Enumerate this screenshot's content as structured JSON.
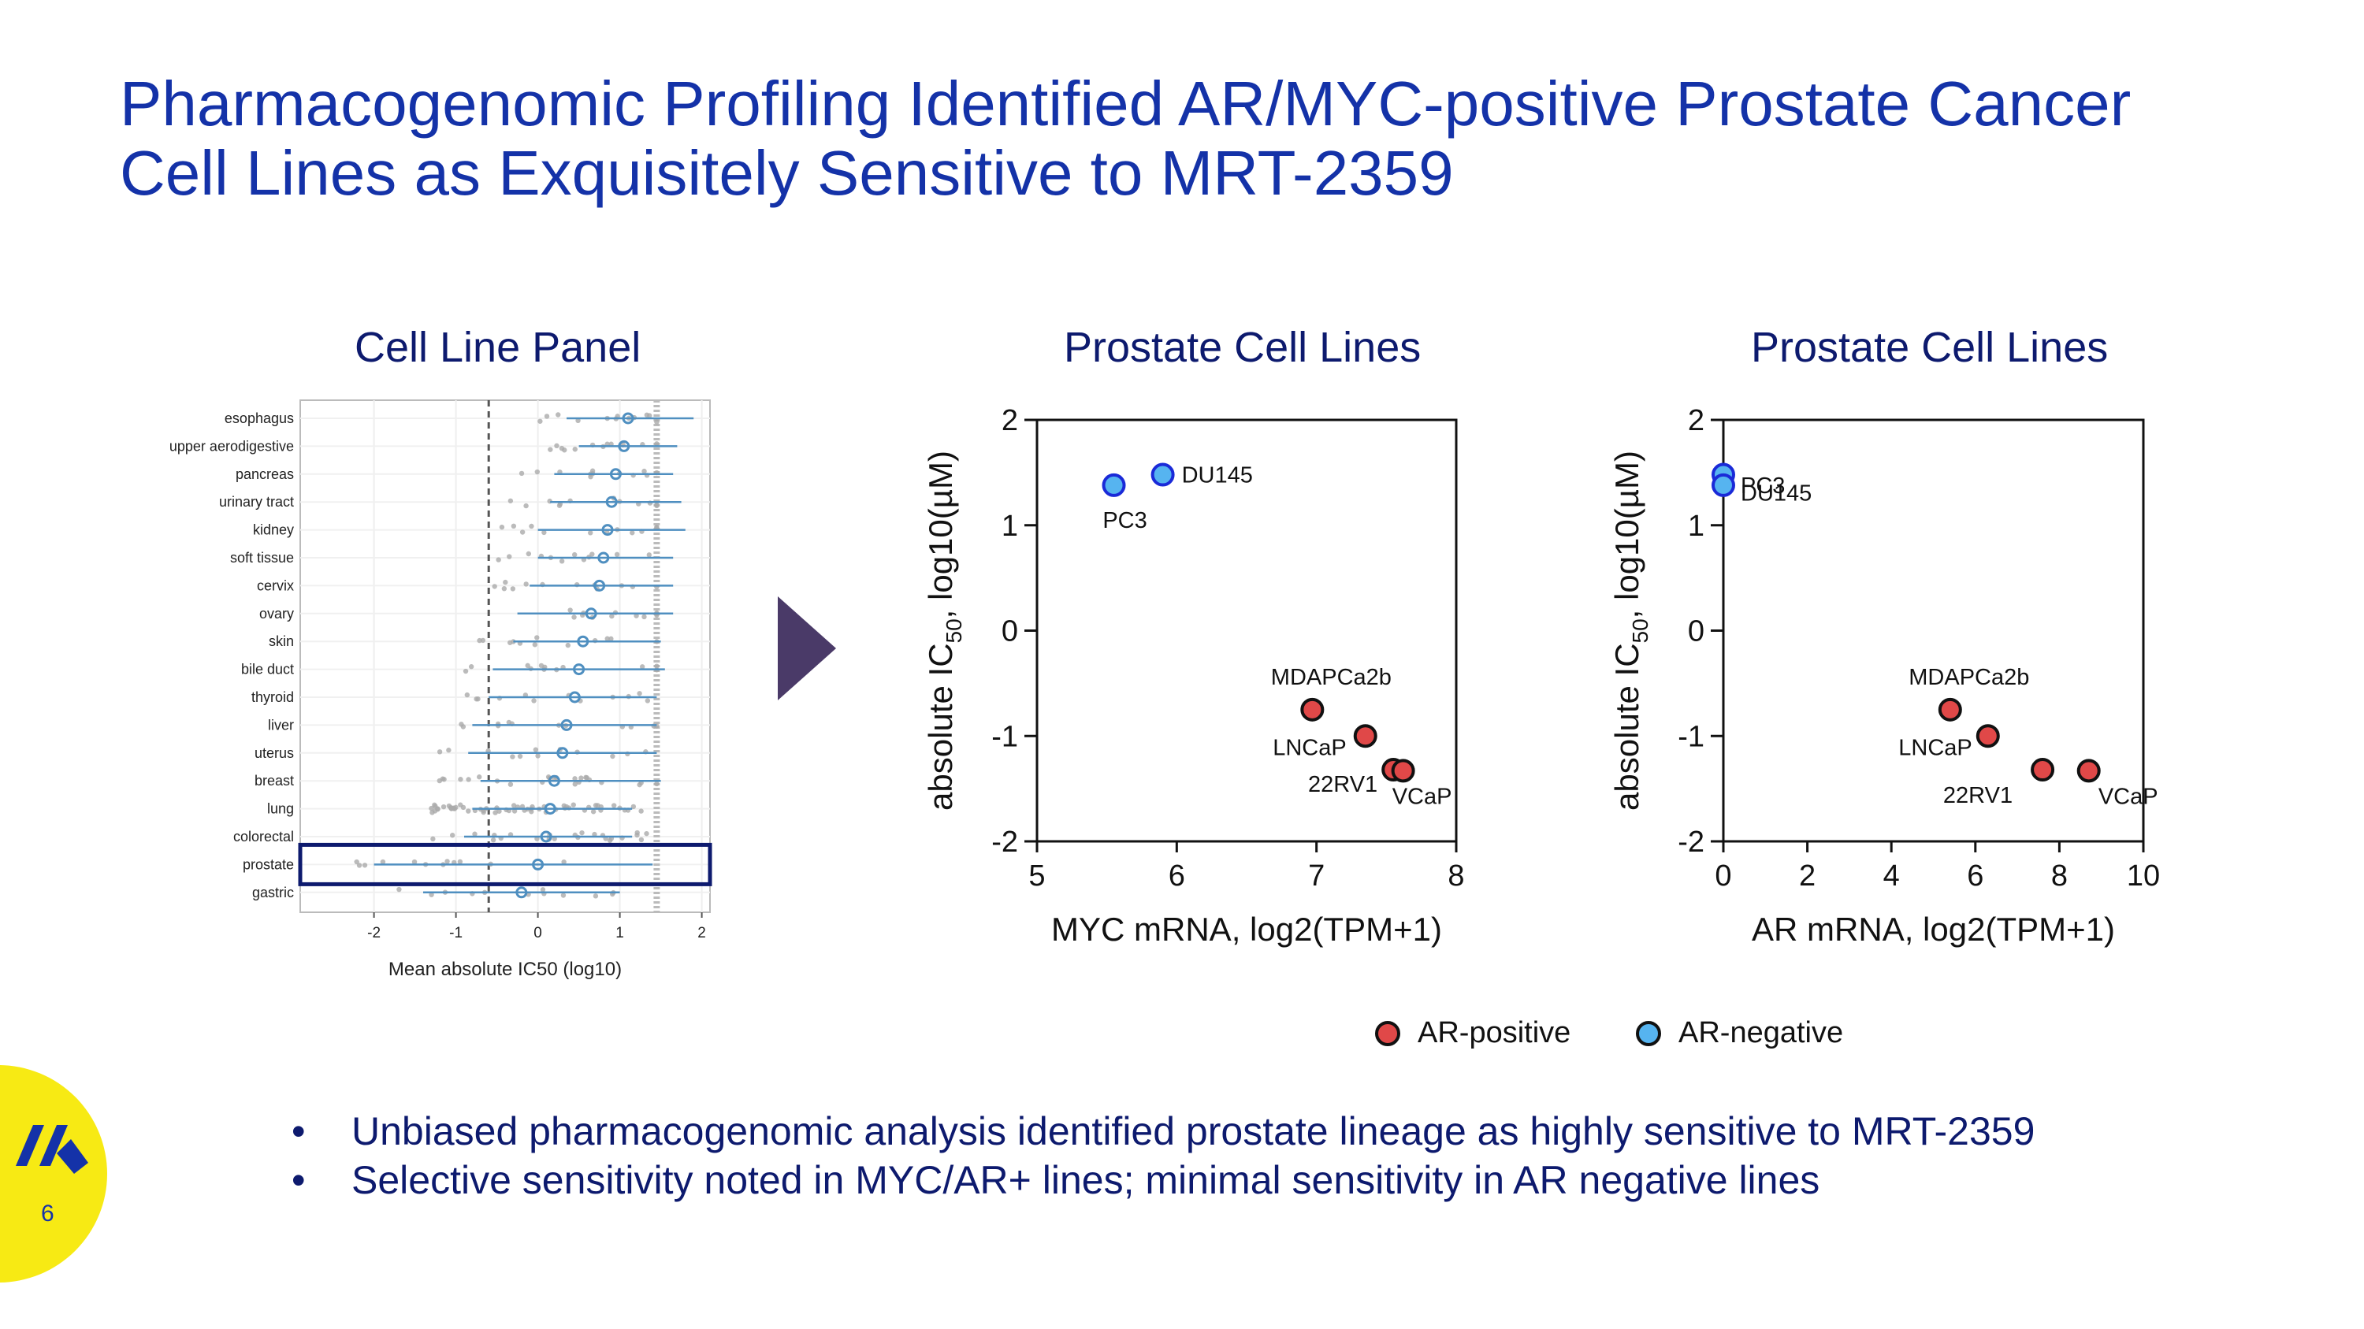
{
  "slide": {
    "title_line1": "Pharmacogenomic Profiling Identified AR/MYC-positive Prostate Cancer",
    "title_line2": "Cell Lines as Exquisitely Sensitive to MRT-2359",
    "page_number": "6",
    "bullets": [
      "Unbiased pharmacogenomic analysis identified prostate lineage as highly sensitive to MRT-2359",
      "Selective sensitivity noted in MYC/AR+ lines; minimal sensitivity in AR negative lines"
    ],
    "legend": {
      "ar_positive": "AR-positive",
      "ar_negative": "AR-negative"
    },
    "colors": {
      "title": "#1432a8",
      "navy": "#0d1a6e",
      "ar_positive": "#e04848",
      "ar_negative": "#56b4f0",
      "ar_negative_edge": "#1a2ad8",
      "forest": "#4f8fc0"
    }
  },
  "chart_data": [
    {
      "type": "forest",
      "title": "Cell Line Panel",
      "xlabel": "Mean absolute IC50 (log10)",
      "xlim": [
        -2.9,
        2.1
      ],
      "xticks": [
        "-2",
        "-1",
        "0",
        "1",
        "2"
      ],
      "reference_line_x": -0.6,
      "highlighted": "prostate",
      "categories": [
        "esophagus",
        "upper aerodigestive",
        "pancreas",
        "urinary tract",
        "kidney",
        "soft tissue",
        "cervix",
        "ovary",
        "skin",
        "bile duct",
        "thyroid",
        "liver",
        "uterus",
        "breast",
        "lung",
        "colorectal",
        "prostate",
        "gastric"
      ],
      "means": [
        1.1,
        1.05,
        0.95,
        0.9,
        0.85,
        0.8,
        0.75,
        0.65,
        0.55,
        0.5,
        0.45,
        0.35,
        0.3,
        0.2,
        0.15,
        0.1,
        0.0,
        -0.2
      ],
      "ci_low": [
        0.35,
        0.5,
        0.2,
        0.15,
        0.0,
        0.0,
        -0.1,
        -0.25,
        -0.3,
        -0.55,
        -0.6,
        -0.8,
        -0.85,
        -0.7,
        -0.8,
        -0.9,
        -2.0,
        -1.4
      ],
      "ci_high": [
        1.9,
        1.7,
        1.65,
        1.75,
        1.8,
        1.65,
        1.65,
        1.65,
        1.5,
        1.55,
        1.45,
        1.45,
        1.45,
        1.5,
        1.15,
        1.15,
        1.4,
        1.0
      ]
    },
    {
      "type": "scatter",
      "title": "Prostate Cell Lines",
      "xlabel": "MYC mRNA, log2(TPM+1)",
      "ylabel": "absolute IC50, log10(µM)",
      "ylabel_main": "absolute IC",
      "ylabel_sub": "50",
      "ylabel_rest": ", log10(µM)",
      "xlim": [
        5,
        8
      ],
      "ylim": [
        -2,
        2
      ],
      "xticks": [
        "5",
        "6",
        "7",
        "8"
      ],
      "yticks": [
        "2",
        "1",
        "0",
        "-1",
        "-2"
      ],
      "points": [
        {
          "label": "PC3",
          "x": 5.55,
          "y": 1.38,
          "group": "AR-negative"
        },
        {
          "label": "DU145",
          "x": 5.9,
          "y": 1.48,
          "group": "AR-negative"
        },
        {
          "label": "MDAPCa2b",
          "x": 6.97,
          "y": -0.75,
          "group": "AR-positive"
        },
        {
          "label": "LNCaP",
          "x": 7.35,
          "y": -1.0,
          "group": "AR-positive"
        },
        {
          "label": "22RV1",
          "x": 7.55,
          "y": -1.32,
          "group": "AR-positive"
        },
        {
          "label": "VCaP",
          "x": 7.62,
          "y": -1.33,
          "group": "AR-positive"
        }
      ]
    },
    {
      "type": "scatter",
      "title": "Prostate Cell Lines",
      "xlabel": "AR mRNA, log2(TPM+1)",
      "ylabel": "absolute IC50, log10(µM)",
      "ylabel_main": "absolute IC",
      "ylabel_sub": "50",
      "ylabel_rest": ", log10(µM)",
      "xlim": [
        0,
        10
      ],
      "ylim": [
        -2,
        2
      ],
      "xticks": [
        "0",
        "2",
        "4",
        "6",
        "8",
        "10"
      ],
      "yticks": [
        "2",
        "1",
        "0",
        "-1",
        "-2"
      ],
      "points": [
        {
          "label": "DU145",
          "x": 0.0,
          "y": 1.48,
          "group": "AR-negative"
        },
        {
          "label": "PC3",
          "x": 0.0,
          "y": 1.38,
          "group": "AR-negative"
        },
        {
          "label": "MDAPCa2b",
          "x": 5.4,
          "y": -0.75,
          "group": "AR-positive"
        },
        {
          "label": "LNCaP",
          "x": 6.3,
          "y": -1.0,
          "group": "AR-positive"
        },
        {
          "label": "22RV1",
          "x": 7.6,
          "y": -1.32,
          "group": "AR-positive"
        },
        {
          "label": "VCaP",
          "x": 8.7,
          "y": -1.33,
          "group": "AR-positive"
        }
      ]
    }
  ]
}
